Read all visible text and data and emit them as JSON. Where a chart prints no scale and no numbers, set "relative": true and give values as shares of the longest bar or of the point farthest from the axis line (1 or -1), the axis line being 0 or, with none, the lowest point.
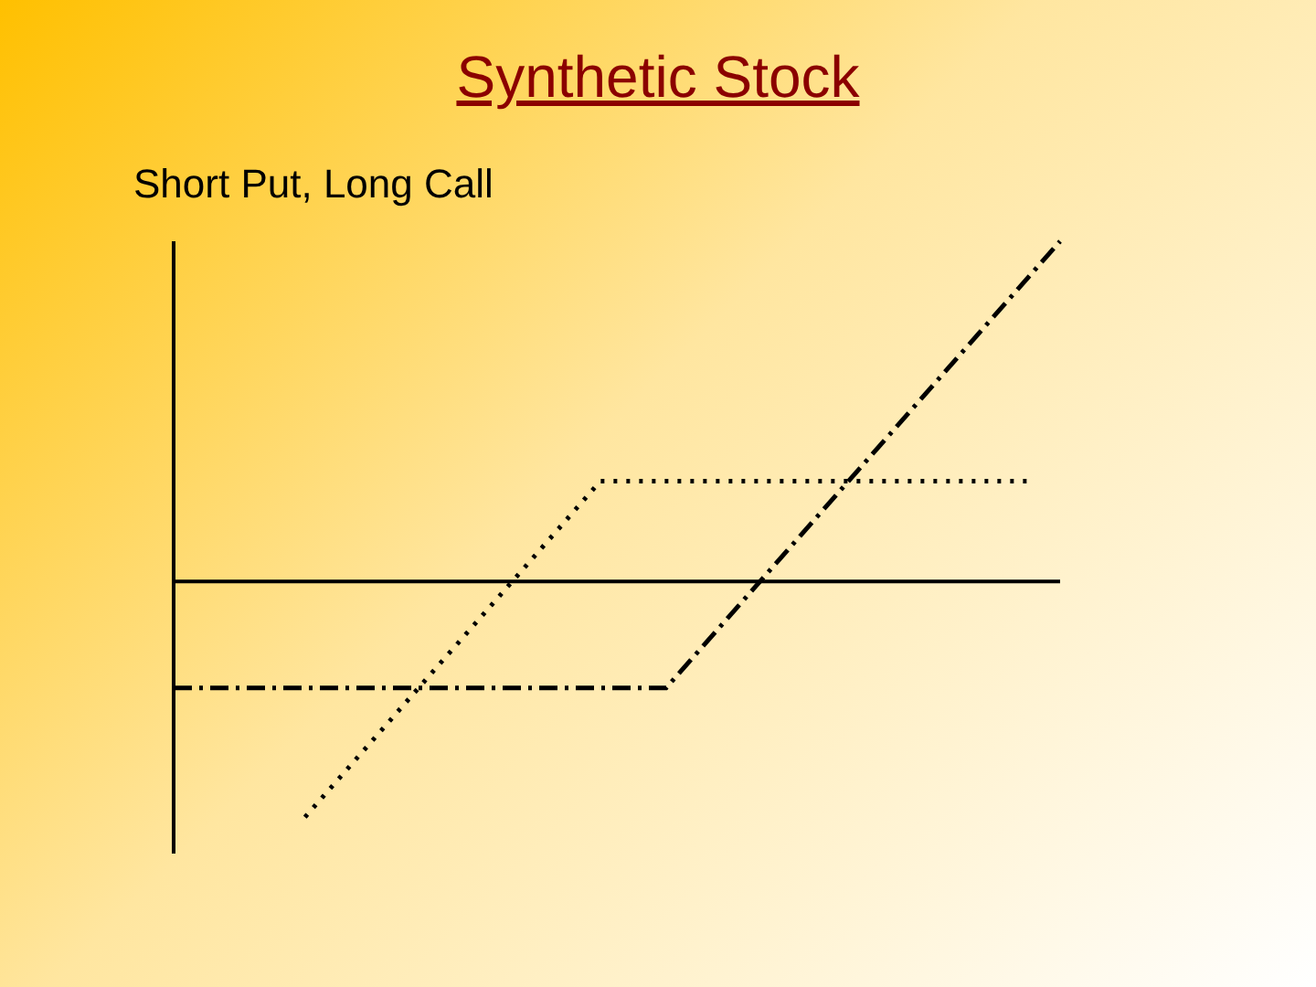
{
  "chart_data": {
    "type": "line",
    "title": "Synthetic Stock",
    "subtitle": "Short Put, Long Call",
    "relative": true,
    "legend": false,
    "marker": "none",
    "categories": [
      null,
      null,
      null,
      null,
      null,
      null,
      null,
      null,
      null,
      null,
      null,
      null,
      null,
      null,
      null,
      null,
      null,
      null,
      null,
      null,
      null,
      null,
      null,
      null,
      null,
      null,
      null,
      null
    ],
    "series": [
      {
        "color": "#000000",
        "line_style": "dotted",
        "values": [
          null,
          null,
          null,
          null,
          -0.693,
          null,
          null,
          null,
          null,
          null,
          null,
          null,
          null,
          0.295,
          null,
          null,
          null,
          null,
          null,
          null,
          null,
          null,
          null,
          null,
          null,
          null,
          0.295,
          null
        ]
      },
      {
        "color": "#000000",
        "line_style": "dashed",
        "values": [
          -0.313,
          null,
          null,
          null,
          null,
          null,
          null,
          null,
          null,
          null,
          null,
          null,
          null,
          null,
          null,
          -0.313,
          null,
          null,
          null,
          null,
          null,
          null,
          null,
          null,
          null,
          null,
          null,
          1
        ]
      }
    ]
  }
}
